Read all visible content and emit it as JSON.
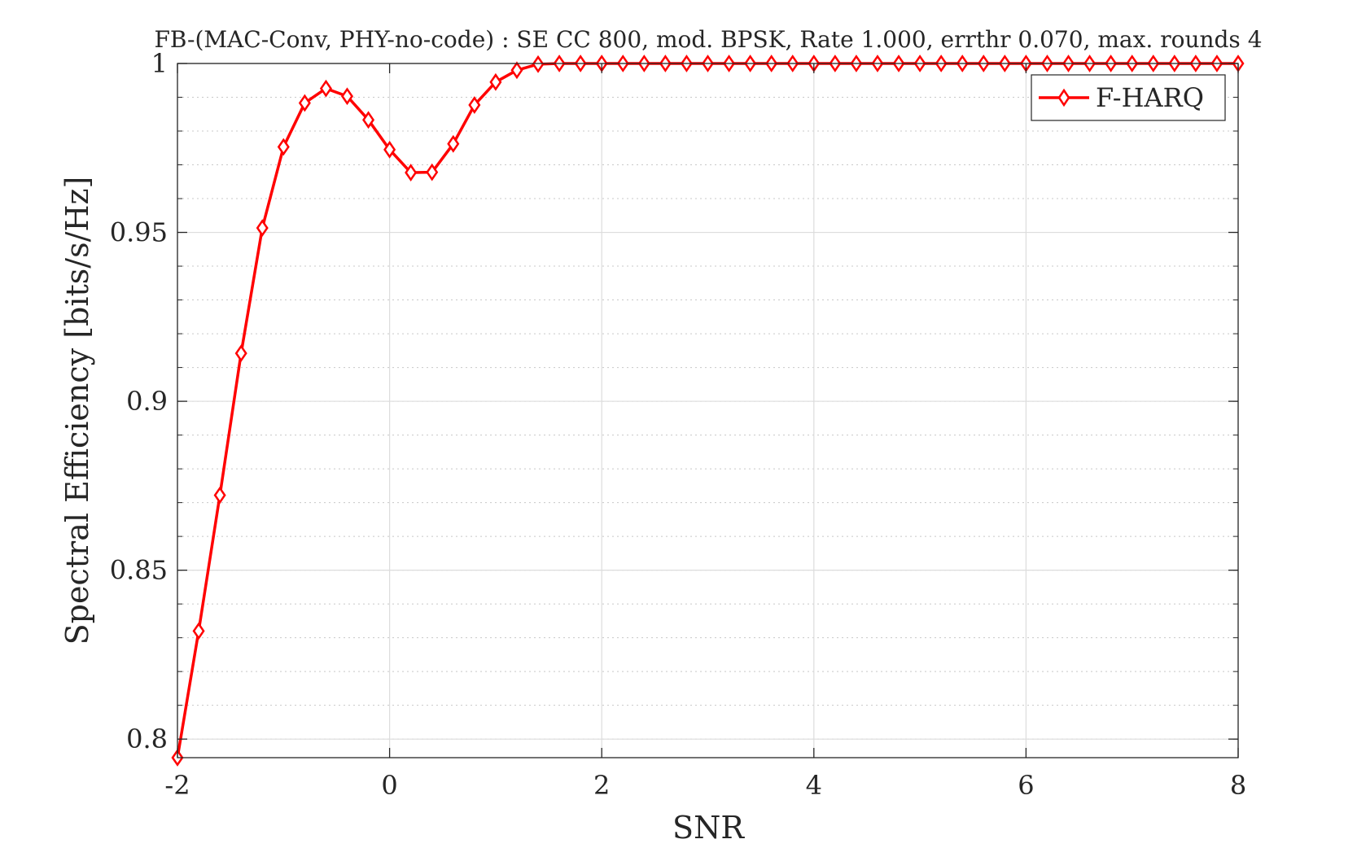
{
  "chart_data": {
    "type": "line",
    "title": "FB-(MAC-Conv, PHY-no-code) : SE CC 800, mod. BPSK, Rate 1.000, errthr 0.070, max. rounds 4",
    "xlabel": "SNR",
    "ylabel": "Spectral Efficiency [bits/s/Hz]",
    "xlim": [
      -2,
      8
    ],
    "ylim": [
      0.7945,
      1.0
    ],
    "xticks": [
      -2,
      0,
      2,
      4,
      6,
      8
    ],
    "xtick_labels": [
      "-2",
      "0",
      "2",
      "4",
      "6",
      "8"
    ],
    "yticks": [
      0.8,
      0.85,
      0.9,
      0.95,
      1
    ],
    "ytick_labels": [
      "0.8",
      "0.85",
      "0.9",
      "0.95",
      "1"
    ],
    "grid": true,
    "minor_grid": true,
    "legend_position": "top-right",
    "series": [
      {
        "name": "F-HARQ",
        "color": "#ff0000",
        "marker": "diamond",
        "x": [
          -2,
          -1.8,
          -1.6,
          -1.4,
          -1.2,
          -1,
          -0.8,
          -0.6,
          -0.4,
          -0.2,
          0,
          0.2,
          0.4,
          0.6,
          0.8,
          1,
          1.2,
          1.4,
          1.6,
          1.8,
          2,
          2.2,
          2.4,
          2.6,
          2.8,
          3,
          3.2,
          3.4,
          3.6,
          3.8,
          4,
          4.2,
          4.4,
          4.6,
          4.8,
          5,
          5.2,
          5.4,
          5.6,
          5.8,
          6,
          6.2,
          6.4,
          6.6,
          6.8,
          7,
          7.2,
          7.4,
          7.6,
          7.8,
          8
        ],
        "y": [
          0.7945,
          0.832,
          0.8722,
          0.9142,
          0.9513,
          0.9753,
          0.9883,
          0.9926,
          0.9903,
          0.9833,
          0.9745,
          0.9677,
          0.9678,
          0.9762,
          0.9877,
          0.9945,
          0.998,
          0.9998,
          1,
          1,
          1,
          1,
          1,
          1,
          1,
          1,
          1,
          1,
          1,
          1,
          1,
          1,
          1,
          1,
          1,
          1,
          1,
          1,
          1,
          1,
          1,
          1,
          1,
          1,
          1,
          1,
          1,
          1,
          1,
          1,
          1
        ]
      }
    ]
  }
}
